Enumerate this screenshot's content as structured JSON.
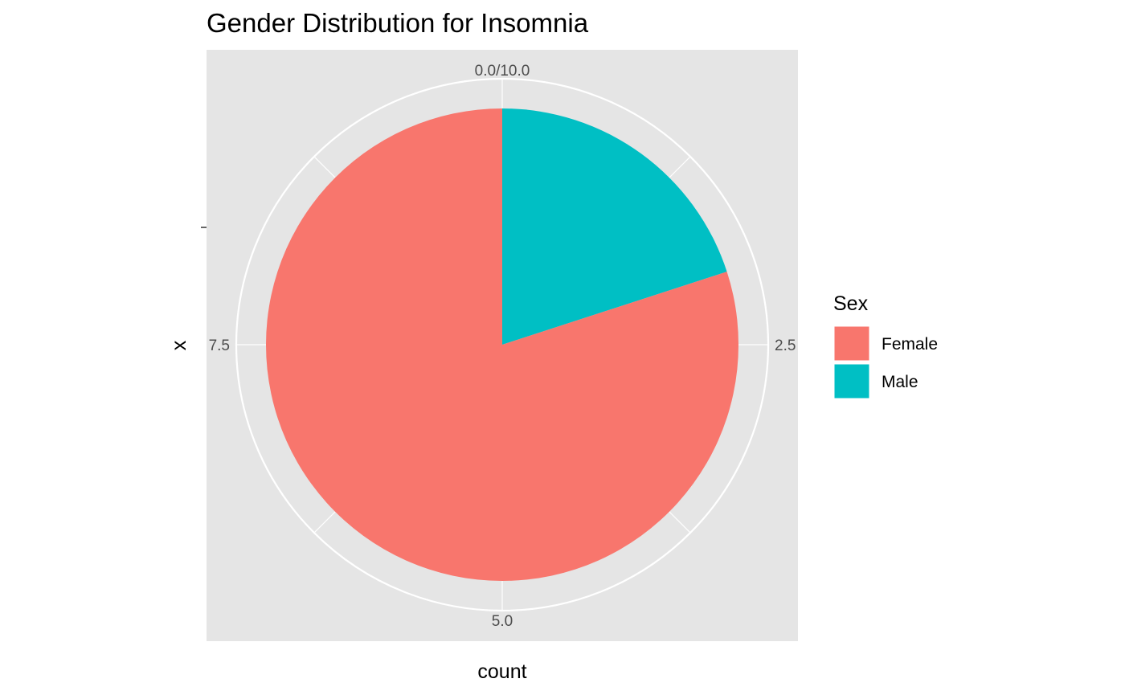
{
  "chart_data": {
    "type": "pie",
    "title": "Gender Distribution for Insomnia",
    "xlabel": "count",
    "ylabel": "x",
    "categories": [
      "Female",
      "Male"
    ],
    "values": [
      8,
      2
    ],
    "colors": [
      "#F8766D",
      "#00BFC4"
    ],
    "theta_range": [
      0,
      10
    ],
    "theta_ticks": [
      "0.0/10.0",
      "2.5",
      "5.0",
      "7.5"
    ],
    "y_tick_labels": [
      ""
    ],
    "legend": {
      "title": "Sex",
      "position": "right",
      "entries": [
        "Female",
        "Male"
      ]
    },
    "panel_background": "#E5E5E5",
    "grid": true
  }
}
